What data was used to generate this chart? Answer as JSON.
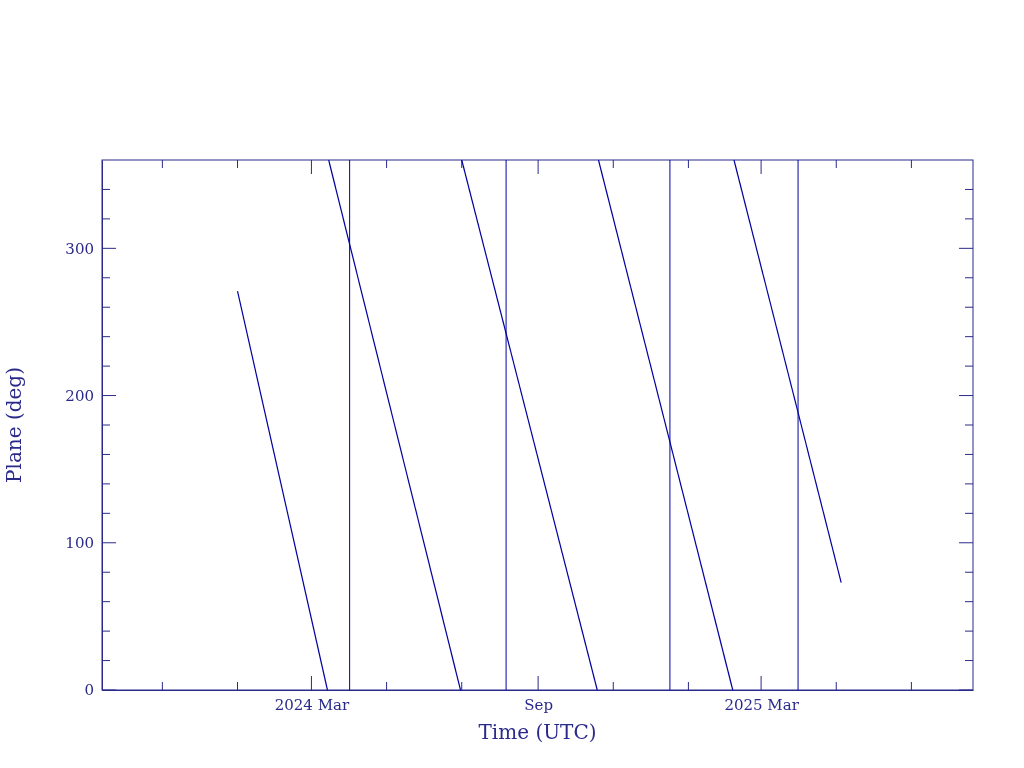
{
  "chart_data": {
    "type": "line",
    "xlabel": "Time (UTC)",
    "ylabel": "Plane (deg)",
    "xlim": [
      "2023-09-13",
      "2025-08-20"
    ],
    "xticks": [
      {
        "value": "2023-11-01",
        "label": null
      },
      {
        "value": "2024-01-01",
        "label": null
      },
      {
        "value": "2024-03-01",
        "label": "2024 Mar"
      },
      {
        "value": "2024-05-01",
        "label": null
      },
      {
        "value": "2024-07-01",
        "label": null
      },
      {
        "value": "2024-09-01",
        "label": "Sep"
      },
      {
        "value": "2024-11-01",
        "label": null
      },
      {
        "value": "2025-01-01",
        "label": null
      },
      {
        "value": "2025-03-01",
        "label": "2025 Mar"
      },
      {
        "value": "2025-05-01",
        "label": null
      },
      {
        "value": "2025-07-01",
        "label": null
      }
    ],
    "ylim": [
      0,
      360
    ],
    "yticks": [
      0,
      {
        "value": 20,
        "label": null
      },
      {
        "value": 40,
        "label": null
      },
      {
        "value": 60,
        "label": null
      },
      {
        "value": 80,
        "label": null
      },
      100,
      {
        "value": 120,
        "label": null
      },
      {
        "value": 140,
        "label": null
      },
      {
        "value": 160,
        "label": null
      },
      {
        "value": 180,
        "label": null
      },
      200,
      {
        "value": 220,
        "label": null
      },
      {
        "value": 240,
        "label": null
      },
      {
        "value": 260,
        "label": null
      },
      {
        "value": 280,
        "label": null
      },
      300,
      {
        "value": 320,
        "label": null
      },
      {
        "value": 340,
        "label": null
      }
    ],
    "series": [
      {
        "color": "#0000a0",
        "x": [
          "2024-01-01",
          "2024-03-14"
        ],
        "values": [
          271,
          0
        ]
      },
      {
        "color": "#0000a0",
        "x": [
          "2024-03-15",
          "2024-06-30"
        ],
        "values": [
          360,
          0
        ]
      },
      {
        "color": "#0000a0",
        "x": [
          "2024-07-01",
          "2024-10-19"
        ],
        "values": [
          360,
          0
        ]
      },
      {
        "color": "#0000a0",
        "x": [
          "2024-10-20",
          "2025-02-06"
        ],
        "values": [
          360,
          0
        ]
      },
      {
        "color": "#0000a0",
        "x": [
          "2025-02-07",
          "2025-05-05"
        ],
        "values": [
          360,
          73
        ]
      }
    ],
    "ref_lines": [
      {
        "axis": "x",
        "value": "2024-04-01",
        "color": "#0000a0"
      },
      {
        "axis": "x",
        "value": "2024-08-06",
        "color": "#0000a0"
      },
      {
        "axis": "x",
        "value": "2024-12-17",
        "color": "#0000a0"
      },
      {
        "axis": "x",
        "value": "2025-03-31",
        "color": "#0000a0"
      }
    ],
    "grid": false,
    "marker": "none",
    "line_style": "solid"
  }
}
